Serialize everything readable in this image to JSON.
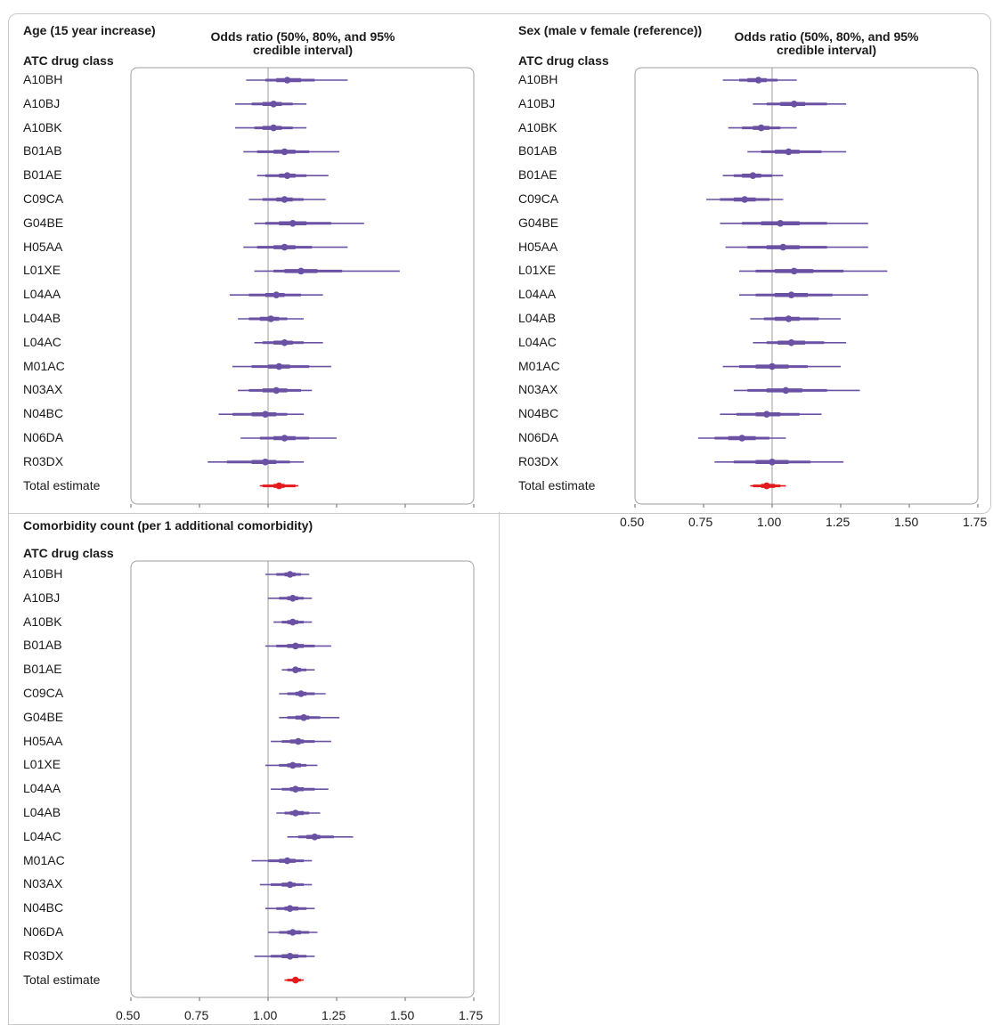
{
  "chart_data": [
    {
      "type": "forest",
      "title": "Age (15 year increase)",
      "ci_header": "Odds ratio (50%, 80%, and 95% credible interval)",
      "row_header": "ATC drug class",
      "xlim": [
        0.5,
        1.75
      ],
      "reference_line": 1.0,
      "xticks": [],
      "categories": [
        "A10BH",
        "A10BJ",
        "A10BK",
        "B01AB",
        "B01AE",
        "C09CA",
        "G04BE",
        "H05AA",
        "L01XE",
        "L04AA",
        "L04AB",
        "L04AC",
        "M01AC",
        "N03AX",
        "N04BC",
        "N06DA",
        "R03DX",
        "Total estimate"
      ],
      "estimates": [
        {
          "or": 1.07,
          "ci50": [
            1.03,
            1.12
          ],
          "ci80": [
            0.99,
            1.17
          ],
          "ci95": [
            0.92,
            1.29
          ]
        },
        {
          "or": 1.02,
          "ci50": [
            0.98,
            1.05
          ],
          "ci80": [
            0.94,
            1.09
          ],
          "ci95": [
            0.88,
            1.14
          ]
        },
        {
          "or": 1.02,
          "ci50": [
            0.98,
            1.05
          ],
          "ci80": [
            0.95,
            1.09
          ],
          "ci95": [
            0.88,
            1.14
          ]
        },
        {
          "or": 1.06,
          "ci50": [
            1.02,
            1.1
          ],
          "ci80": [
            0.96,
            1.15
          ],
          "ci95": [
            0.91,
            1.26
          ]
        },
        {
          "or": 1.07,
          "ci50": [
            1.04,
            1.1
          ],
          "ci80": [
            0.99,
            1.14
          ],
          "ci95": [
            0.96,
            1.22
          ]
        },
        {
          "or": 1.06,
          "ci50": [
            1.03,
            1.09
          ],
          "ci80": [
            0.98,
            1.13
          ],
          "ci95": [
            0.93,
            1.21
          ]
        },
        {
          "or": 1.09,
          "ci50": [
            1.04,
            1.14
          ],
          "ci80": [
            0.99,
            1.23
          ],
          "ci95": [
            0.95,
            1.35
          ]
        },
        {
          "or": 1.06,
          "ci50": [
            1.02,
            1.1
          ],
          "ci80": [
            0.96,
            1.16
          ],
          "ci95": [
            0.91,
            1.29
          ]
        },
        {
          "or": 1.12,
          "ci50": [
            1.06,
            1.18
          ],
          "ci80": [
            1.02,
            1.27
          ],
          "ci95": [
            0.95,
            1.48
          ]
        },
        {
          "or": 1.03,
          "ci50": [
            0.99,
            1.06
          ],
          "ci80": [
            0.93,
            1.12
          ],
          "ci95": [
            0.86,
            1.2
          ]
        },
        {
          "or": 1.01,
          "ci50": [
            0.97,
            1.04
          ],
          "ci80": [
            0.93,
            1.07
          ],
          "ci95": [
            0.89,
            1.13
          ]
        },
        {
          "or": 1.06,
          "ci50": [
            1.02,
            1.09
          ],
          "ci80": [
            0.98,
            1.13
          ],
          "ci95": [
            0.95,
            1.2
          ]
        },
        {
          "or": 1.04,
          "ci50": [
            1.0,
            1.08
          ],
          "ci80": [
            0.94,
            1.15
          ],
          "ci95": [
            0.87,
            1.23
          ]
        },
        {
          "or": 1.03,
          "ci50": [
            0.98,
            1.07
          ],
          "ci80": [
            0.93,
            1.12
          ],
          "ci95": [
            0.89,
            1.16
          ]
        },
        {
          "or": 0.99,
          "ci50": [
            0.94,
            1.03
          ],
          "ci80": [
            0.87,
            1.07
          ],
          "ci95": [
            0.82,
            1.13
          ]
        },
        {
          "or": 1.06,
          "ci50": [
            1.02,
            1.1
          ],
          "ci80": [
            0.97,
            1.15
          ],
          "ci95": [
            0.9,
            1.25
          ]
        },
        {
          "or": 0.99,
          "ci50": [
            0.94,
            1.03
          ],
          "ci80": [
            0.85,
            1.08
          ],
          "ci95": [
            0.78,
            1.13
          ]
        },
        {
          "or": 1.04,
          "ci50": [
            1.02,
            1.06
          ],
          "ci80": [
            0.98,
            1.1
          ],
          "ci95": [
            0.97,
            1.11
          ],
          "total": true
        }
      ]
    },
    {
      "type": "forest",
      "title": "Sex (male v female (reference))",
      "ci_header": "Odds ratio (50%, 80%, and 95% credible interval)",
      "row_header": "ATC drug class",
      "xlim": [
        0.5,
        1.75
      ],
      "reference_line": 1.0,
      "xticks": [
        "0.50",
        "0.75",
        "1.00",
        "1.25",
        "1.50",
        "1.75"
      ],
      "categories": [
        "A10BH",
        "A10BJ",
        "A10BK",
        "B01AB",
        "B01AE",
        "C09CA",
        "G04BE",
        "H05AA",
        "L01XE",
        "L04AA",
        "L04AB",
        "L04AC",
        "M01AC",
        "N03AX",
        "N04BC",
        "N06DA",
        "R03DX",
        "Total estimate"
      ],
      "estimates": [
        {
          "or": 0.95,
          "ci50": [
            0.91,
            0.98
          ],
          "ci80": [
            0.88,
            1.02
          ],
          "ci95": [
            0.82,
            1.09
          ]
        },
        {
          "or": 1.08,
          "ci50": [
            1.03,
            1.12
          ],
          "ci80": [
            0.98,
            1.2
          ],
          "ci95": [
            0.93,
            1.27
          ]
        },
        {
          "or": 0.96,
          "ci50": [
            0.93,
            0.99
          ],
          "ci80": [
            0.89,
            1.03
          ],
          "ci95": [
            0.84,
            1.09
          ]
        },
        {
          "or": 1.06,
          "ci50": [
            1.01,
            1.1
          ],
          "ci80": [
            0.96,
            1.18
          ],
          "ci95": [
            0.91,
            1.27
          ]
        },
        {
          "or": 0.93,
          "ci50": [
            0.89,
            0.96
          ],
          "ci80": [
            0.86,
            1.0
          ],
          "ci95": [
            0.82,
            1.04
          ]
        },
        {
          "or": 0.9,
          "ci50": [
            0.86,
            0.94
          ],
          "ci80": [
            0.81,
            0.99
          ],
          "ci95": [
            0.76,
            1.04
          ]
        },
        {
          "or": 1.03,
          "ci50": [
            0.96,
            1.1
          ],
          "ci80": [
            0.89,
            1.2
          ],
          "ci95": [
            0.81,
            1.35
          ]
        },
        {
          "or": 1.04,
          "ci50": [
            0.98,
            1.1
          ],
          "ci80": [
            0.91,
            1.2
          ],
          "ci95": [
            0.83,
            1.35
          ]
        },
        {
          "or": 1.08,
          "ci50": [
            1.01,
            1.15
          ],
          "ci80": [
            0.94,
            1.26
          ],
          "ci95": [
            0.88,
            1.42
          ]
        },
        {
          "or": 1.07,
          "ci50": [
            1.01,
            1.13
          ],
          "ci80": [
            0.94,
            1.22
          ],
          "ci95": [
            0.88,
            1.35
          ]
        },
        {
          "or": 1.06,
          "ci50": [
            1.01,
            1.1
          ],
          "ci80": [
            0.97,
            1.17
          ],
          "ci95": [
            0.92,
            1.25
          ]
        },
        {
          "or": 1.07,
          "ci50": [
            1.02,
            1.12
          ],
          "ci80": [
            0.98,
            1.19
          ],
          "ci95": [
            0.93,
            1.27
          ]
        },
        {
          "or": 1.0,
          "ci50": [
            0.94,
            1.06
          ],
          "ci80": [
            0.88,
            1.13
          ],
          "ci95": [
            0.82,
            1.25
          ]
        },
        {
          "or": 1.05,
          "ci50": [
            0.98,
            1.11
          ],
          "ci80": [
            0.91,
            1.2
          ],
          "ci95": [
            0.86,
            1.32
          ]
        },
        {
          "or": 0.98,
          "ci50": [
            0.94,
            1.03
          ],
          "ci80": [
            0.87,
            1.1
          ],
          "ci95": [
            0.81,
            1.18
          ]
        },
        {
          "or": 0.89,
          "ci50": [
            0.84,
            0.94
          ],
          "ci80": [
            0.79,
            0.99
          ],
          "ci95": [
            0.73,
            1.05
          ]
        },
        {
          "or": 1.0,
          "ci50": [
            0.94,
            1.06
          ],
          "ci80": [
            0.86,
            1.14
          ],
          "ci95": [
            0.79,
            1.26
          ]
        },
        {
          "or": 0.98,
          "ci50": [
            0.96,
            1.01
          ],
          "ci80": [
            0.93,
            1.03
          ],
          "ci95": [
            0.92,
            1.05
          ],
          "total": true
        }
      ]
    },
    {
      "type": "forest",
      "title": "Comorbidity count (per 1 additional comorbidity)",
      "ci_header": "",
      "row_header": "ATC drug class",
      "xlim": [
        0.5,
        1.75
      ],
      "reference_line": 1.0,
      "xticks": [
        "0.50",
        "0.75",
        "1.00",
        "1.25",
        "1.50",
        "1.75"
      ],
      "categories": [
        "A10BH",
        "A10BJ",
        "A10BK",
        "B01AB",
        "B01AE",
        "C09CA",
        "G04BE",
        "H05AA",
        "L01XE",
        "L04AA",
        "L04AB",
        "L04AC",
        "M01AC",
        "N03AX",
        "N04BC",
        "N06DA",
        "R03DX",
        "Total estimate"
      ],
      "estimates": [
        {
          "or": 1.08,
          "ci50": [
            1.06,
            1.1
          ],
          "ci80": [
            1.03,
            1.12
          ],
          "ci95": [
            0.99,
            1.15
          ]
        },
        {
          "or": 1.09,
          "ci50": [
            1.07,
            1.11
          ],
          "ci80": [
            1.04,
            1.13
          ],
          "ci95": [
            1.0,
            1.16
          ]
        },
        {
          "or": 1.09,
          "ci50": [
            1.07,
            1.11
          ],
          "ci80": [
            1.05,
            1.13
          ],
          "ci95": [
            1.02,
            1.16
          ]
        },
        {
          "or": 1.1,
          "ci50": [
            1.07,
            1.13
          ],
          "ci80": [
            1.03,
            1.17
          ],
          "ci95": [
            0.99,
            1.23
          ]
        },
        {
          "or": 1.1,
          "ci50": [
            1.09,
            1.12
          ],
          "ci80": [
            1.07,
            1.14
          ],
          "ci95": [
            1.05,
            1.17
          ]
        },
        {
          "or": 1.12,
          "ci50": [
            1.1,
            1.14
          ],
          "ci80": [
            1.07,
            1.17
          ],
          "ci95": [
            1.04,
            1.21
          ]
        },
        {
          "or": 1.13,
          "ci50": [
            1.1,
            1.15
          ],
          "ci80": [
            1.07,
            1.19
          ],
          "ci95": [
            1.04,
            1.26
          ]
        },
        {
          "or": 1.11,
          "ci50": [
            1.08,
            1.13
          ],
          "ci80": [
            1.05,
            1.17
          ],
          "ci95": [
            1.01,
            1.23
          ]
        },
        {
          "or": 1.09,
          "ci50": [
            1.07,
            1.12
          ],
          "ci80": [
            1.04,
            1.14
          ],
          "ci95": [
            0.99,
            1.18
          ]
        },
        {
          "or": 1.1,
          "ci50": [
            1.08,
            1.13
          ],
          "ci80": [
            1.05,
            1.17
          ],
          "ci95": [
            1.01,
            1.22
          ]
        },
        {
          "or": 1.1,
          "ci50": [
            1.08,
            1.13
          ],
          "ci80": [
            1.06,
            1.15
          ],
          "ci95": [
            1.03,
            1.19
          ]
        },
        {
          "or": 1.17,
          "ci50": [
            1.14,
            1.19
          ],
          "ci80": [
            1.11,
            1.24
          ],
          "ci95": [
            1.07,
            1.31
          ]
        },
        {
          "or": 1.07,
          "ci50": [
            1.04,
            1.1
          ],
          "ci80": [
            1.0,
            1.13
          ],
          "ci95": [
            0.94,
            1.16
          ]
        },
        {
          "or": 1.08,
          "ci50": [
            1.05,
            1.1
          ],
          "ci80": [
            1.01,
            1.13
          ],
          "ci95": [
            0.97,
            1.16
          ]
        },
        {
          "or": 1.08,
          "ci50": [
            1.06,
            1.11
          ],
          "ci80": [
            1.03,
            1.14
          ],
          "ci95": [
            0.99,
            1.17
          ]
        },
        {
          "or": 1.09,
          "ci50": [
            1.07,
            1.12
          ],
          "ci80": [
            1.04,
            1.15
          ],
          "ci95": [
            1.0,
            1.18
          ]
        },
        {
          "or": 1.08,
          "ci50": [
            1.05,
            1.11
          ],
          "ci80": [
            1.01,
            1.14
          ],
          "ci95": [
            0.95,
            1.17
          ]
        },
        {
          "or": 1.1,
          "ci50": [
            1.09,
            1.11
          ],
          "ci80": [
            1.07,
            1.12
          ],
          "ci95": [
            1.06,
            1.13
          ],
          "total": true
        }
      ]
    }
  ],
  "colors": {
    "estimate": "#6a51a3",
    "total": "#e41a1c",
    "panel_border": "#9e9e9e",
    "reference_line": "#9e9e9e"
  }
}
